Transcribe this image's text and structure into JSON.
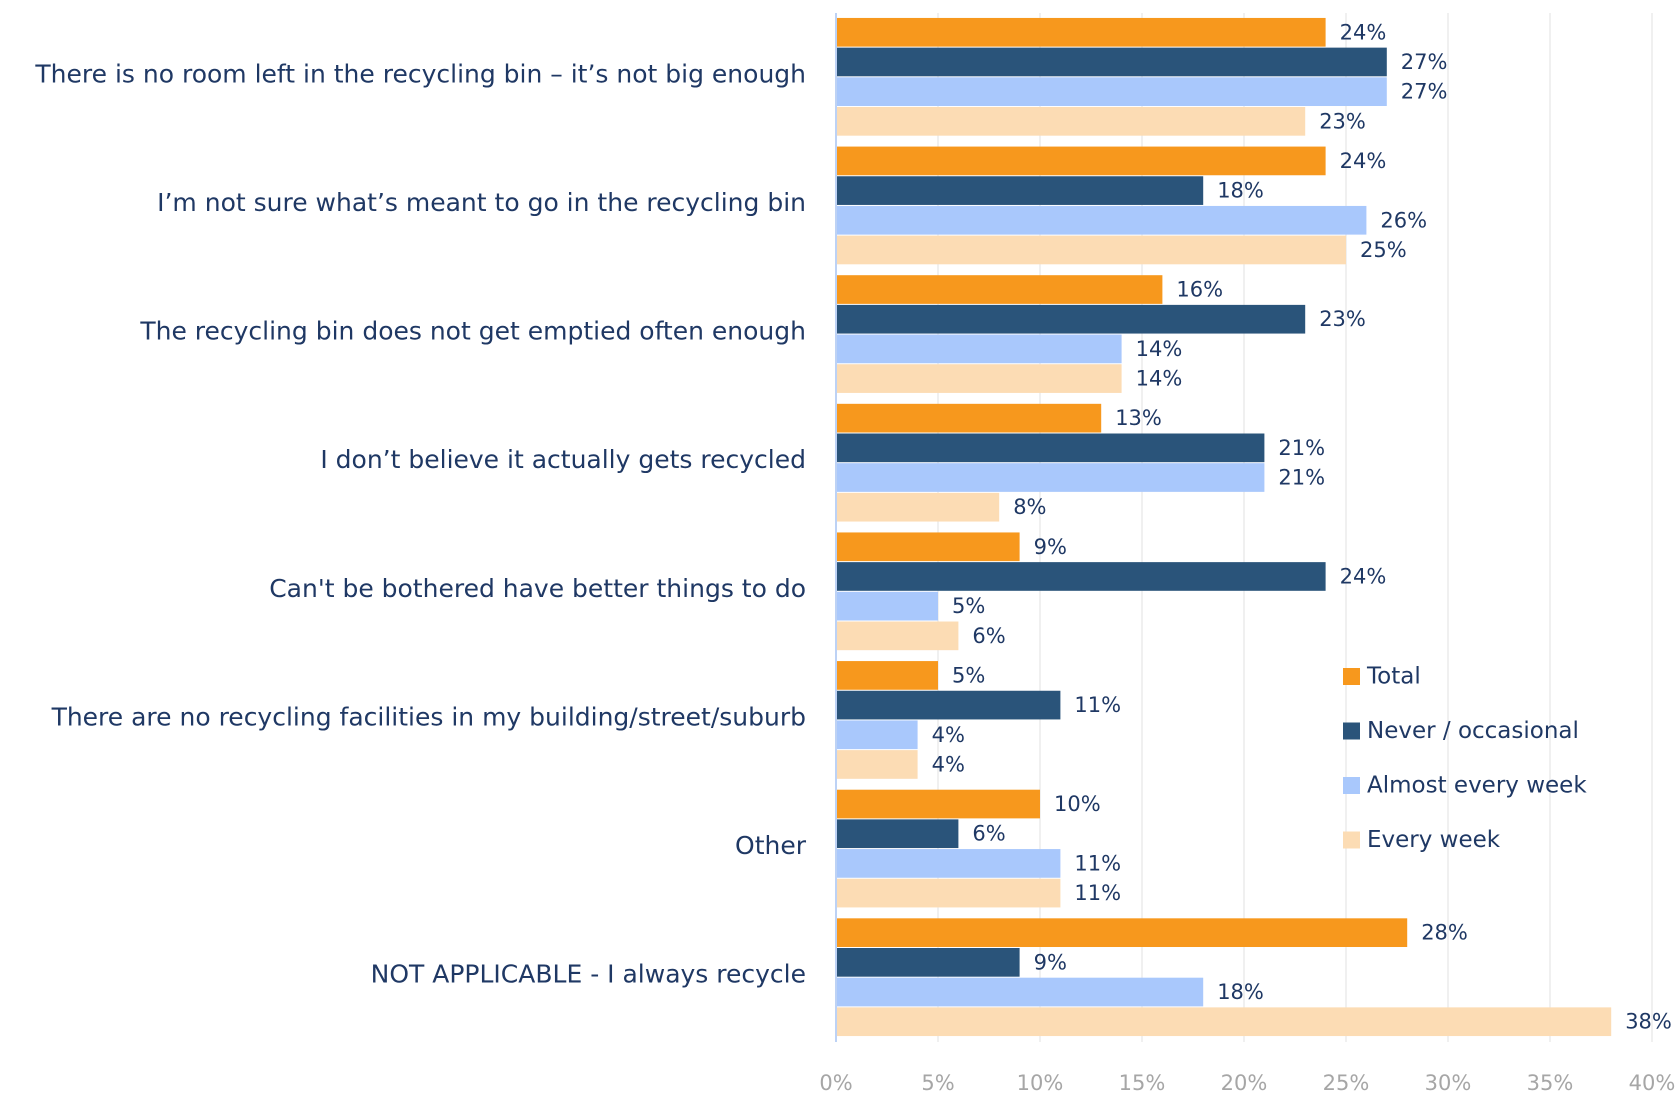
{
  "chart_data": {
    "type": "hbar",
    "categories": [
      "There is no room left in the recycling bin – it’s not big enough",
      "I’m not sure what’s meant to go in the recycling bin",
      "The recycling bin does not get emptied often enough",
      "I don’t believe it actually gets recycled",
      "Can't be bothered have better things to do",
      "There are no recycling facilities in my building/street/suburb",
      "Other",
      "NOT APPLICABLE - I always recycle"
    ],
    "series": [
      {
        "name": "Total",
        "color": "#f7981d",
        "values": [
          24,
          24,
          16,
          13,
          9,
          5,
          10,
          28
        ],
        "value_labels": [
          "24%",
          "24%",
          "16%",
          "13%",
          "9%",
          "5%",
          "10%",
          "28%"
        ]
      },
      {
        "name": "Never / occasional",
        "color": "#2a547a",
        "values": [
          27,
          18,
          23,
          21,
          24,
          11,
          6,
          9
        ],
        "value_labels": [
          "27%",
          "18%",
          "23%",
          "21%",
          "24%",
          "11%",
          "6%",
          "9%"
        ]
      },
      {
        "name": "Almost every week",
        "color": "#a9c8fc",
        "values": [
          27,
          26,
          14,
          21,
          5,
          4,
          11,
          18
        ],
        "value_labels": [
          "27%",
          "26%",
          "14%",
          "21%",
          "5%",
          "4%",
          "11%",
          "18%"
        ]
      },
      {
        "name": "Every week",
        "color": "#fcdcb4",
        "values": [
          23,
          25,
          14,
          8,
          6,
          4,
          11,
          38
        ],
        "value_labels": [
          "23%",
          "25%",
          "14%",
          "8%",
          "6%",
          "4%",
          "11%",
          "38%"
        ]
      }
    ],
    "xlim": [
      0,
      40
    ],
    "xticks": [
      {
        "value": 0,
        "label": "0%"
      },
      {
        "value": 5,
        "label": "5%"
      },
      {
        "value": 10,
        "label": "10%"
      },
      {
        "value": 15,
        "label": "15%"
      },
      {
        "value": 20,
        "label": "20%"
      },
      {
        "value": 25,
        "label": "25%"
      },
      {
        "value": 30,
        "label": "30%"
      },
      {
        "value": 35,
        "label": "35%"
      },
      {
        "value": 40,
        "label": "40%"
      }
    ],
    "grid": true,
    "legend_position": "right"
  }
}
